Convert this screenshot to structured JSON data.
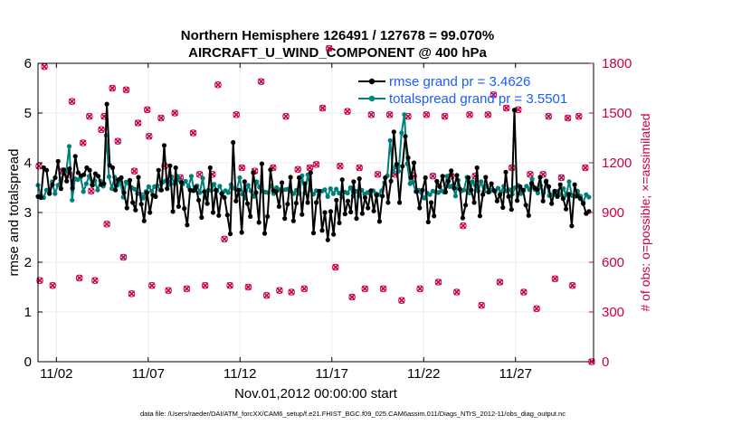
{
  "title_line1": "Northern Hemisphere 126491 / 127678 = 99.070%",
  "title_line2": "AIRCRAFT_U_WIND_COMPONENT @ 400 hPa",
  "footer": "data file: /Users/raeder/DAI/ATM_forcXX/CAM6_setup/f.e21.FHIST_BGC.f09_025.CAM6assim.011/Diags_NTrS_2012-11/obs_diag_output.nc",
  "colors": {
    "rmse": "#000000",
    "spread": "#00807a",
    "obs": "#c8004a",
    "legend_text": "#1a5cff"
  },
  "chart_data": {
    "type": "line",
    "xlabel": "Nov.01,2012 00:00:00 start",
    "ylabel": "rmse and totalspread",
    "y2label": "# of obs: o=possible; ×=assimilated",
    "xlim": [
      0.5,
      30.75
    ],
    "ylim": [
      0,
      6
    ],
    "y2lim": [
      0,
      1800
    ],
    "xticks": [
      1.5,
      6.5,
      11.5,
      16.5,
      21.5,
      26.5
    ],
    "xtick_labels": [
      "11/02",
      "11/07",
      "11/12",
      "11/17",
      "11/22",
      "11/27"
    ],
    "yticks": [
      0,
      1,
      2,
      3,
      4,
      5,
      6
    ],
    "y2ticks": [
      0,
      300,
      600,
      900,
      1200,
      1500,
      1800
    ],
    "legend_location": "top-right",
    "series": [
      {
        "name": "rmse",
        "legend_label": "rmse grand pr = 3.4626",
        "values": [
          3.32,
          3.3,
          3.9,
          3.85,
          3.38,
          3.56,
          3.7,
          4.03,
          3.48,
          3.86,
          3.63,
          3.88,
          3.49,
          4.13,
          3.8,
          3.74,
          3.76,
          3.9,
          3.85,
          3.55,
          3.78,
          3.73,
          3.56,
          3.58,
          5.18,
          3.95,
          3.9,
          3.45,
          3.66,
          3.7,
          3.4,
          3.09,
          3.65,
          3.2,
          3.05,
          3.71,
          3.17,
          2.83,
          3.4,
          3.0,
          3.35,
          3.32,
          3.85,
          3.45,
          4.35,
          3.48,
          3.94,
          3.02,
          3.9,
          3.12,
          3.6,
          3.08,
          2.75,
          3.45,
          3.44,
          3.51,
          3.25,
          2.9,
          3.42,
          3.18,
          3.9,
          3.0,
          3.45,
          2.94,
          3.38,
          3.3,
          2.95,
          2.57,
          4.41,
          3.23,
          3.45,
          2.6,
          3.62,
          3.18,
          2.92,
          3.8,
          3.4,
          2.8,
          3.98,
          2.58,
          2.92,
          3.86,
          3.44,
          3.42,
          3.12,
          3.6,
          2.88,
          3.17,
          3.71,
          2.83,
          3.19,
          3.7,
          2.96,
          3.58,
          3.2,
          3.8,
          2.59,
          3.2,
          3.43,
          2.64,
          3.0,
          2.45,
          3.02,
          2.56,
          3.25,
          2.79,
          3.66,
          2.97,
          3.23,
          3.01,
          3.62,
          2.88,
          3.68,
          2.98,
          3.3,
          3.09,
          3.44,
          3.03,
          3.35,
          2.82,
          3.33,
          3.7,
          3.2,
          3.63,
          4.62,
          3.97,
          3.2,
          3.93,
          4.53,
          4.1,
          3.7,
          4.0,
          3.42,
          3.09,
          3.45,
          3.7,
          2.81,
          3.2,
          2.93,
          3.63,
          3.52,
          3.73,
          3.41,
          3.63,
          3.84,
          3.49,
          3.75,
          3.47,
          2.89,
          3.15,
          3.7,
          3.45,
          3.2,
          3.9,
          2.93,
          3.36,
          3.71,
          3.41,
          3.58,
          3.44,
          3.23,
          3.36,
          3.1,
          3.81,
          3.32,
          3.06,
          5.06,
          3.24,
          3.52,
          3.45,
          3.15,
          2.94,
          3.59,
          3.5,
          3.46,
          3.71,
          3.23,
          3.62,
          3.52,
          3.18,
          3.43,
          3.32,
          3.56,
          3.28,
          3.07,
          3.37,
          2.73,
          3.56,
          3.33,
          3.28,
          3.18,
          2.98,
          3.02
        ]
      },
      {
        "name": "totalspread",
        "legend_label": "totalspread grand pr = 3.5501",
        "values": [
          3.55,
          3.35,
          3.3,
          3.45,
          3.42,
          3.62,
          3.38,
          3.55,
          3.65,
          3.79,
          3.85,
          4.33,
          3.25,
          3.68,
          3.66,
          3.71,
          3.42,
          3.58,
          3.73,
          3.56,
          3.64,
          3.45,
          3.63,
          3.53,
          4.55,
          3.72,
          3.48,
          3.71,
          3.55,
          3.63,
          3.31,
          3.61,
          3.58,
          3.5,
          3.47,
          3.38,
          3.37,
          3.29,
          3.42,
          3.52,
          3.43,
          3.52,
          3.54,
          3.45,
          3.61,
          3.64,
          3.56,
          3.72,
          3.58,
          3.73,
          3.64,
          3.57,
          3.63,
          3.52,
          3.73,
          3.44,
          3.54,
          3.4,
          3.69,
          3.3,
          3.45,
          3.44,
          3.57,
          3.43,
          3.53,
          3.4,
          3.44,
          3.4,
          3.56,
          3.49,
          3.46,
          3.7,
          3.37,
          3.29,
          3.55,
          3.43,
          3.32,
          3.62,
          3.51,
          3.43,
          3.41,
          3.4,
          3.54,
          3.38,
          3.5,
          3.46,
          3.45,
          3.46,
          3.47,
          3.43,
          3.38,
          3.45,
          3.38,
          3.74,
          3.39,
          3.76,
          3.45,
          3.37,
          3.44,
          3.36,
          3.43,
          3.46,
          3.32,
          3.48,
          3.38,
          3.47,
          3.39,
          3.31,
          3.41,
          3.39,
          3.5,
          3.33,
          3.43,
          3.33,
          3.45,
          3.37,
          3.4,
          3.38,
          3.44,
          3.38,
          3.36,
          3.44,
          3.6,
          3.74,
          4.45,
          3.81,
          3.92,
          3.83,
          4.6,
          4.97,
          3.98,
          3.58,
          3.61,
          3.42,
          3.45,
          3.4,
          3.29,
          3.39,
          3.36,
          3.43,
          3.42,
          3.4,
          3.44,
          3.41,
          3.73,
          3.52,
          3.54,
          3.33,
          3.65,
          3.43,
          3.45,
          3.71,
          3.39,
          3.62,
          3.55,
          3.43,
          3.62,
          3.42,
          3.53,
          3.42,
          3.45,
          3.42,
          3.49,
          3.41,
          3.53,
          3.43,
          3.46,
          3.37,
          3.5,
          3.55,
          3.38,
          3.44,
          3.53,
          3.46,
          3.67,
          3.46,
          3.39,
          3.54,
          3.4,
          3.64,
          3.34,
          3.36,
          3.37,
          3.43,
          3.36,
          3.48,
          3.35,
          3.62,
          3.34,
          3.32,
          3.43,
          3.33,
          3.21,
          3.36,
          3.31
        ]
      }
    ],
    "obs_possible": [
      [
        0.55,
        1180
      ],
      [
        0.6,
        490
      ],
      [
        0.85,
        1780
      ],
      [
        1.3,
        460
      ],
      [
        1.8,
        1150
      ],
      [
        2.2,
        1130
      ],
      [
        2.35,
        1570
      ],
      [
        2.75,
        505
      ],
      [
        2.95,
        1320
      ],
      [
        3.3,
        1480
      ],
      [
        3.4,
        1030
      ],
      [
        3.6,
        490
      ],
      [
        3.95,
        1400
      ],
      [
        4.1,
        1480
      ],
      [
        4.25,
        830
      ],
      [
        4.55,
        1650
      ],
      [
        4.85,
        1330
      ],
      [
        5.15,
        630
      ],
      [
        5.3,
        1640
      ],
      [
        5.6,
        410
      ],
      [
        5.75,
        1150
      ],
      [
        5.95,
        1440
      ],
      [
        6.2,
        1000
      ],
      [
        6.45,
        1520
      ],
      [
        6.55,
        1360
      ],
      [
        6.7,
        460
      ],
      [
        7.2,
        1470
      ],
      [
        7.4,
        1180
      ],
      [
        7.6,
        430
      ],
      [
        7.95,
        1500
      ],
      [
        8.25,
        1110
      ],
      [
        8.6,
        440
      ],
      [
        8.95,
        1380
      ],
      [
        9.3,
        1130
      ],
      [
        9.6,
        460
      ],
      [
        10.0,
        1130
      ],
      [
        10.3,
        1670
      ],
      [
        10.65,
        740
      ],
      [
        10.95,
        460
      ],
      [
        11.3,
        1490
      ],
      [
        11.6,
        1170
      ],
      [
        11.95,
        450
      ],
      [
        12.3,
        1150
      ],
      [
        12.65,
        1690
      ],
      [
        12.95,
        400
      ],
      [
        13.3,
        1170
      ],
      [
        13.65,
        430
      ],
      [
        14.0,
        1480
      ],
      [
        14.3,
        420
      ],
      [
        14.65,
        1160
      ],
      [
        15.0,
        440
      ],
      [
        15.3,
        1170
      ],
      [
        15.65,
        1190
      ],
      [
        16.0,
        1530
      ],
      [
        16.35,
        1890
      ],
      [
        16.7,
        570
      ],
      [
        16.95,
        1180
      ],
      [
        17.35,
        1510
      ],
      [
        17.6,
        390
      ],
      [
        18.0,
        1170
      ],
      [
        18.3,
        440
      ],
      [
        18.65,
        1490
      ],
      [
        19.0,
        1130
      ],
      [
        19.3,
        440
      ],
      [
        19.65,
        1490
      ],
      [
        19.95,
        1130
      ],
      [
        20.3,
        370
      ],
      [
        20.65,
        1480
      ],
      [
        20.95,
        1120
      ],
      [
        21.3,
        440
      ],
      [
        21.65,
        1490
      ],
      [
        22.0,
        1120
      ],
      [
        22.3,
        480
      ],
      [
        22.65,
        1480
      ],
      [
        23.0,
        1120
      ],
      [
        23.3,
        420
      ],
      [
        23.65,
        820
      ],
      [
        24.0,
        1490
      ],
      [
        24.3,
        1120
      ],
      [
        24.65,
        340
      ],
      [
        25.0,
        1490
      ],
      [
        25.3,
        1610
      ],
      [
        25.65,
        480
      ],
      [
        26.0,
        1530
      ],
      [
        26.3,
        1170
      ],
      [
        26.65,
        1520
      ],
      [
        26.95,
        420
      ],
      [
        27.3,
        1130
      ],
      [
        27.65,
        320
      ],
      [
        28.0,
        1130
      ],
      [
        28.3,
        1480
      ],
      [
        28.65,
        500
      ],
      [
        29.0,
        1110
      ],
      [
        29.35,
        1470
      ],
      [
        29.6,
        460
      ],
      [
        29.95,
        1480
      ],
      [
        30.3,
        1170
      ],
      [
        30.65,
        0
      ]
    ]
  }
}
